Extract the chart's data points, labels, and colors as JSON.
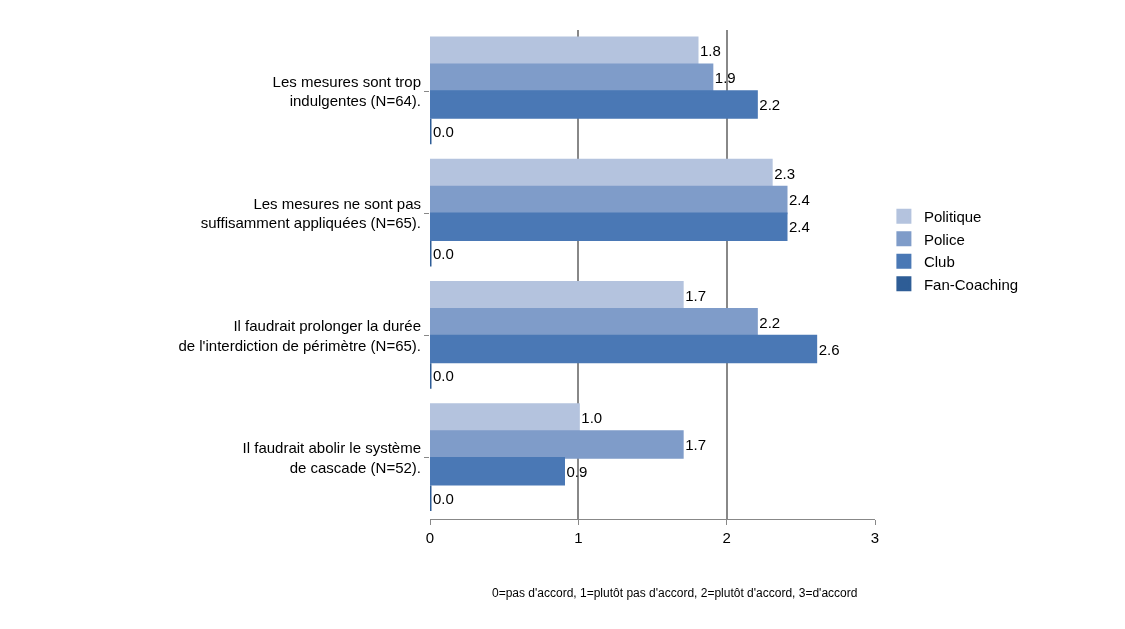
{
  "chart_data": {
    "type": "bar",
    "orientation": "horizontal",
    "categories": [
      "Les mesures sont trop\nindulgentes (N=64).",
      "Les mesures ne sont pas\nsuffisamment appliquées (N=65).",
      "Il faudrait prolonger la durée\nde l'interdiction de périmètre (N=65).",
      "Il faudrait abolir le système\nde cascade (N=52)."
    ],
    "series": [
      {
        "name": "Politique",
        "color": "#b4c3de",
        "values": [
          1.8,
          2.3,
          1.7,
          1.0
        ],
        "value_labels": [
          "1.8",
          "2.3",
          "1.7",
          "1.0"
        ]
      },
      {
        "name": "Police",
        "color": "#7f9cc9",
        "values": [
          1.9,
          2.4,
          2.2,
          1.7
        ],
        "value_labels": [
          "1.9",
          "2.4",
          "2.2",
          "1.7"
        ]
      },
      {
        "name": "Club",
        "color": "#4a78b5",
        "values": [
          2.2,
          2.4,
          2.6,
          0.9
        ],
        "value_labels": [
          "2.2",
          "2.4",
          "2.6",
          "0.9"
        ]
      },
      {
        "name": "Fan-Coaching",
        "color": "#2e5d96",
        "values": [
          0.0,
          0.0,
          0.0,
          0.0
        ],
        "value_labels": [
          "0.0",
          "0.0",
          "0.0",
          "0.0"
        ]
      }
    ],
    "xlim": [
      0,
      3
    ],
    "xticks": [
      0,
      1,
      2,
      3
    ],
    "grid": "x",
    "legend": "right",
    "annotations": [
      "0=pas d'accord, 1=plutôt pas d'accord, 2=plutôt d'accord, 3=d'accord"
    ]
  }
}
